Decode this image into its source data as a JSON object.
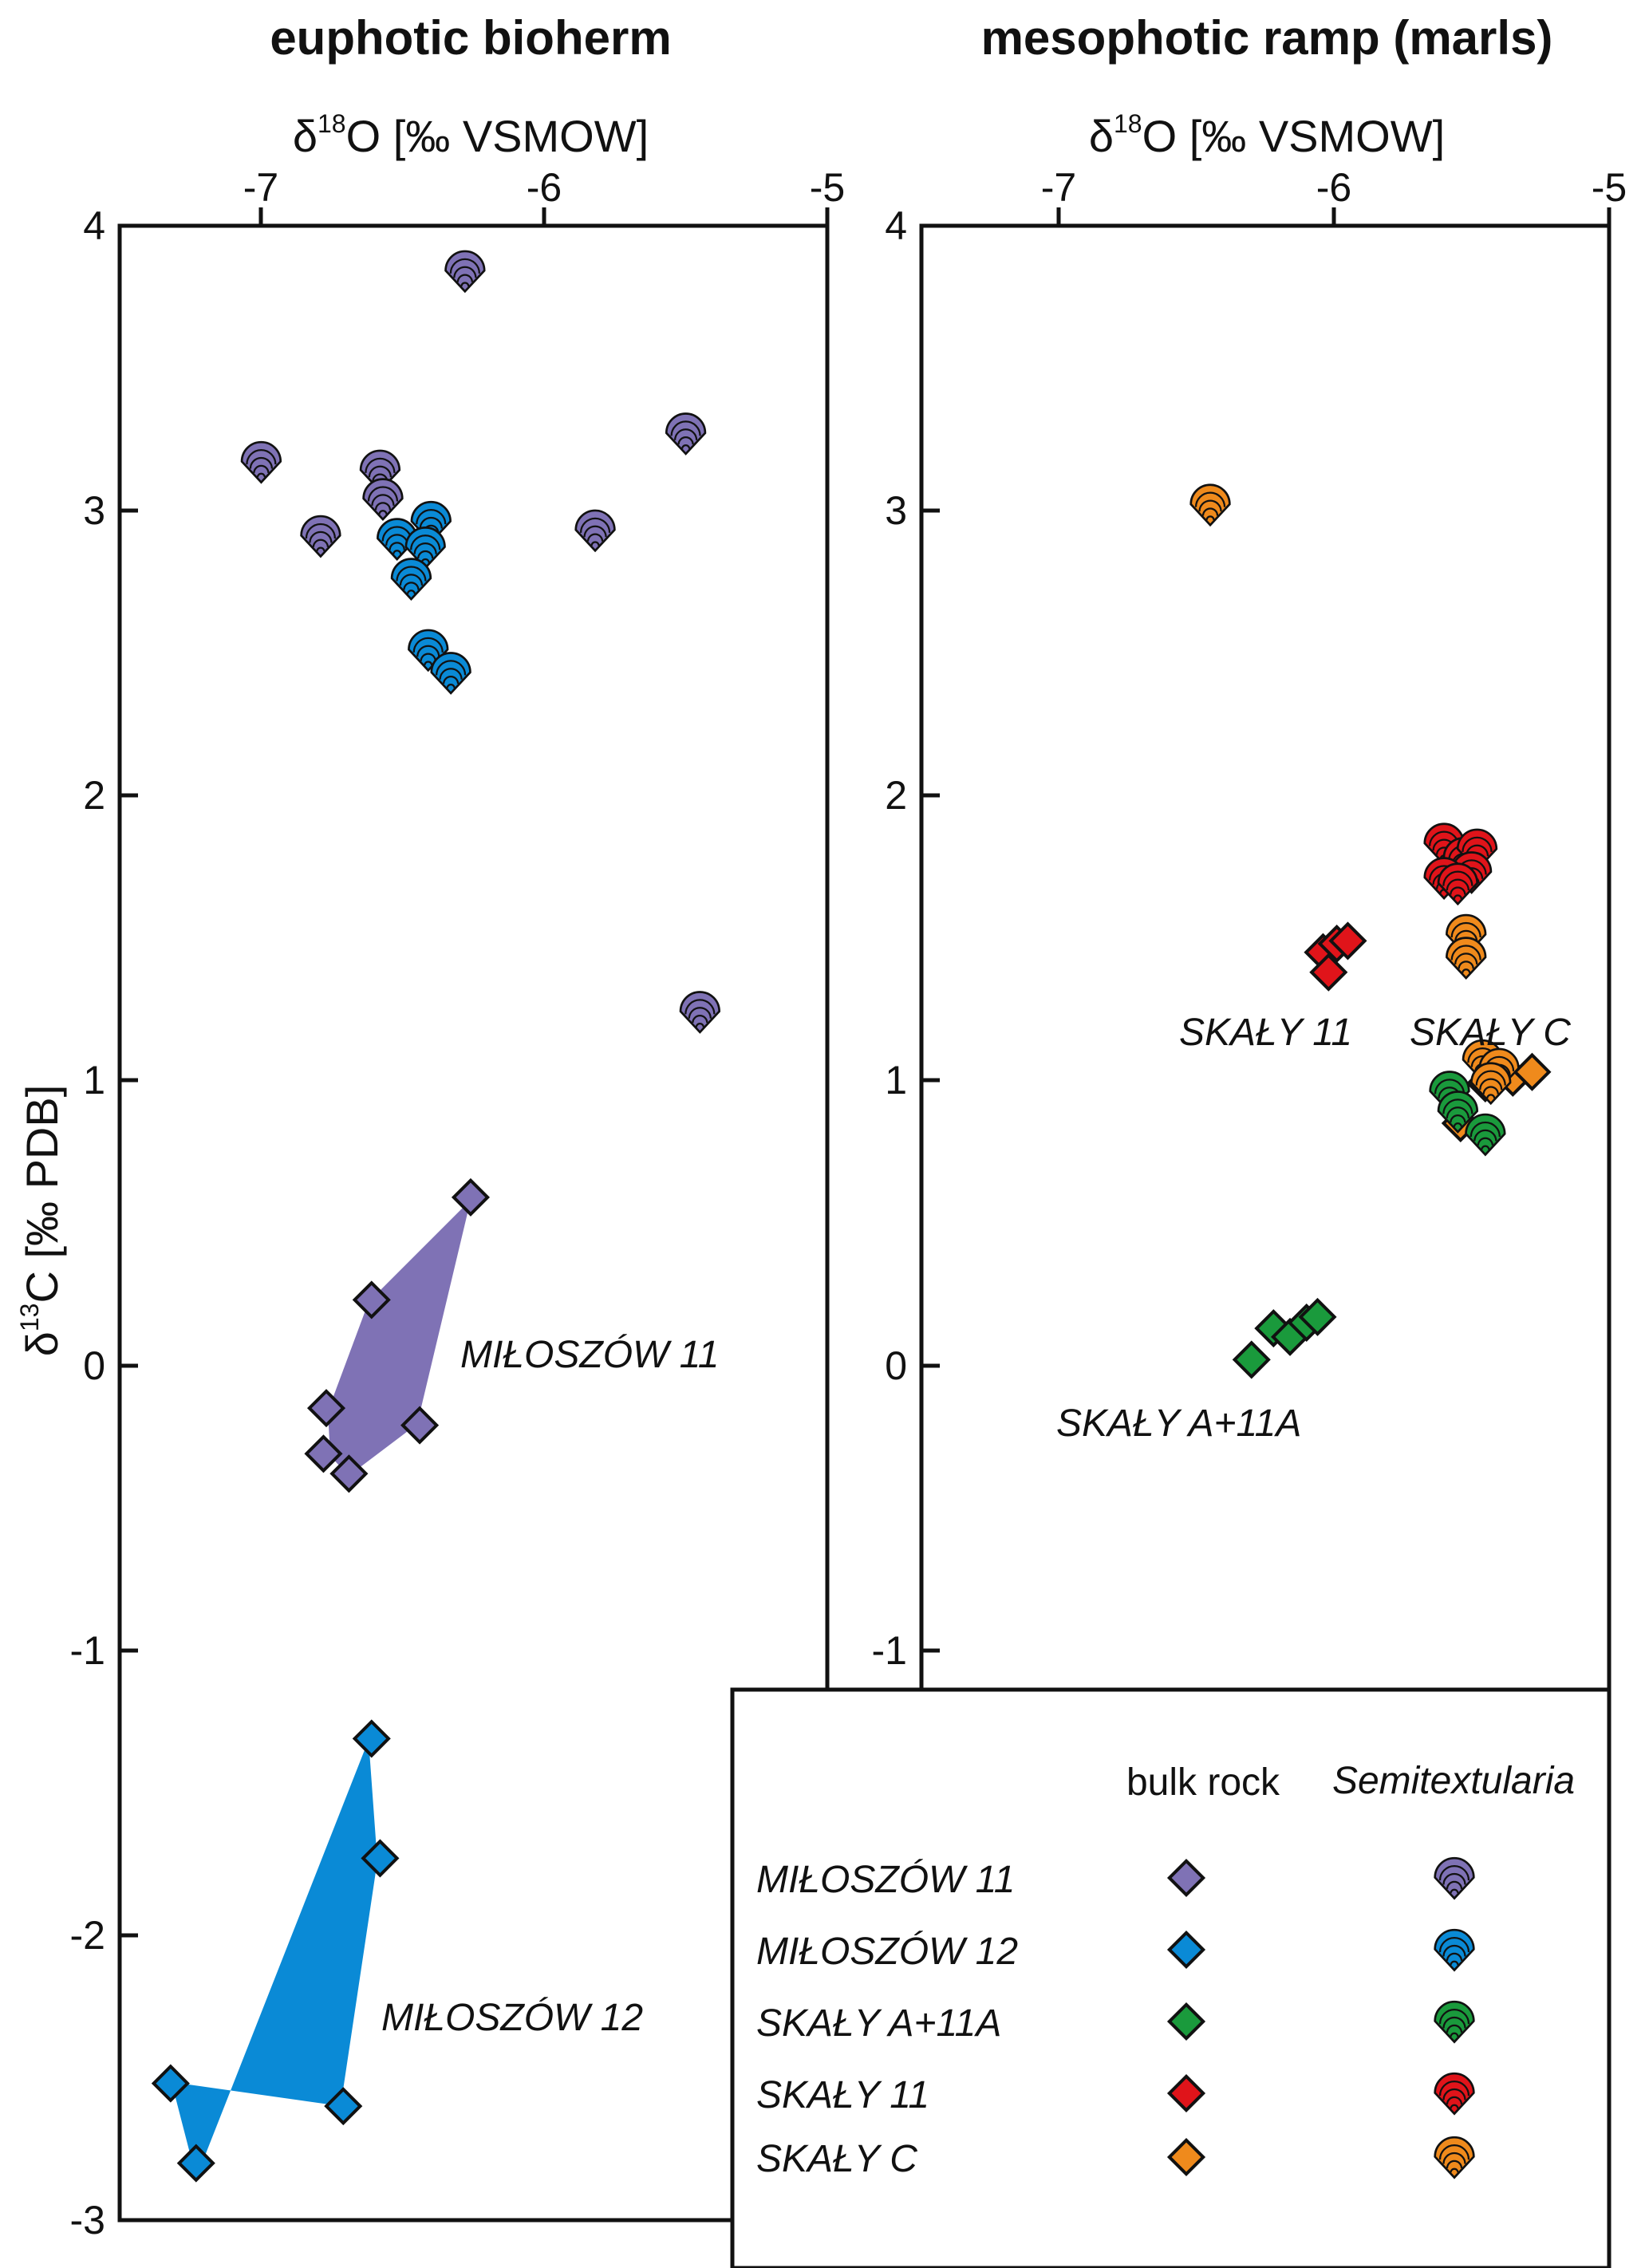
{
  "colors": {
    "MIL11": "#7f72b5",
    "MIL12": "#0a8ad6",
    "SKA_A11A": "#1a9a3c",
    "SKA11": "#e0141a",
    "SKAC": "#ef8a1c"
  },
  "chart_data": [
    {
      "type": "scatter",
      "title": "euphotic bioherm",
      "xlabel": {
        "main": "δ",
        "sup": "18",
        "rest": "O [‰ VSMOW]"
      },
      "ylabel": {
        "main": "δ",
        "sup": "13",
        "rest": "C [‰ PDB]"
      },
      "xlim": [
        -7.5,
        -5
      ],
      "ylim": [
        -3,
        4
      ],
      "xticks": [
        -7,
        -6,
        -5
      ],
      "xtick_labels": [
        "-7",
        "-6",
        "-5"
      ],
      "yticks": [
        4,
        3,
        2,
        1,
        0,
        -1,
        -2,
        -3
      ],
      "ytick_labels": [
        "4",
        "3",
        "2",
        "1",
        "0",
        "-1",
        "-2",
        "-3"
      ],
      "series": [
        {
          "key": "MIL11",
          "marker": "diamond",
          "name": "MIŁOSZÓW 11 bulk rock",
          "points": [
            [
              -6.26,
              0.59
            ],
            [
              -6.61,
              0.23
            ],
            [
              -6.77,
              -0.15
            ],
            [
              -6.78,
              -0.31
            ],
            [
              -6.69,
              -0.38
            ],
            [
              -6.44,
              -0.21
            ]
          ]
        },
        {
          "key": "MIL12",
          "marker": "diamond",
          "name": "MIŁOSZÓW 12 bulk rock",
          "points": [
            [
              -6.61,
              -1.31
            ],
            [
              -6.58,
              -1.73
            ],
            [
              -6.71,
              -2.6
            ],
            [
              -7.32,
              -2.52
            ],
            [
              -7.23,
              -2.8
            ]
          ]
        },
        {
          "key": "MIL11",
          "marker": "shell",
          "name": "MIŁOSZÓW 11 Semitextularia",
          "points": [
            [
              -6.28,
              3.83
            ],
            [
              -7.0,
              3.16
            ],
            [
              -6.58,
              3.13
            ],
            [
              -6.57,
              3.03
            ],
            [
              -6.79,
              2.9
            ],
            [
              -5.82,
              2.92
            ],
            [
              -5.5,
              3.26
            ],
            [
              -5.45,
              1.23
            ]
          ]
        },
        {
          "key": "MIL12",
          "marker": "shell",
          "name": "MIŁOSZÓW 12 Semitextularia",
          "points": [
            [
              -6.52,
              2.89
            ],
            [
              -6.4,
              2.95
            ],
            [
              -6.42,
              2.86
            ],
            [
              -6.47,
              2.75
            ],
            [
              -6.41,
              2.5
            ],
            [
              -6.33,
              2.42
            ]
          ]
        }
      ],
      "annotations": [
        {
          "text": "MIŁOSZÓW 11",
          "x": -6.23,
          "y": 0.02
        },
        {
          "text": "MIŁOSZÓW 12",
          "x": -6.51,
          "y": -2.3
        }
      ]
    },
    {
      "type": "scatter",
      "title": "mesophotic ramp (marls)",
      "xlabel": {
        "main": "δ",
        "sup": "18",
        "rest": "O [‰ VSMOW]"
      },
      "xlim": [
        -7.5,
        -5
      ],
      "ylim": [
        -3,
        4
      ],
      "xticks": [
        -7,
        -6,
        -5
      ],
      "xtick_labels": [
        "-7",
        "-6",
        "-5"
      ],
      "yticks": [
        4,
        3,
        2,
        1,
        0,
        -1
      ],
      "ytick_labels": [
        "4",
        "3",
        "2",
        "1",
        "0",
        "-1"
      ],
      "series": [
        {
          "key": "SKA11",
          "marker": "diamond",
          "name": "SKAŁY 11 bulk rock",
          "points": [
            [
              -6.04,
              1.45
            ],
            [
              -5.99,
              1.48
            ],
            [
              -6.02,
              1.38
            ],
            [
              -5.95,
              1.49
            ]
          ]
        },
        {
          "key": "SKA_A11A",
          "marker": "diamond",
          "name": "SKAŁY A+11A bulk rock",
          "points": [
            [
              -6.3,
              0.02
            ],
            [
              -6.22,
              0.13
            ],
            [
              -6.16,
              0.1
            ],
            [
              -6.1,
              0.15
            ],
            [
              -6.06,
              0.17
            ]
          ]
        },
        {
          "key": "SKAC",
          "marker": "diamond",
          "name": "SKAŁY C bulk rock",
          "points": [
            [
              -5.54,
              0.85
            ],
            [
              -5.45,
              0.99
            ],
            [
              -5.35,
              1.01
            ],
            [
              -5.28,
              1.03
            ]
          ]
        },
        {
          "key": "SKA11",
          "marker": "shell",
          "name": "SKAŁY 11 Semitextularia",
          "points": [
            [
              -5.6,
              1.82
            ],
            [
              -5.53,
              1.77
            ],
            [
              -5.48,
              1.8
            ],
            [
              -5.5,
              1.72
            ],
            [
              -5.6,
              1.7
            ],
            [
              -5.55,
              1.68
            ]
          ]
        },
        {
          "key": "SKA_A11A",
          "marker": "shell",
          "name": "SKAŁY A+11A Semitextularia",
          "points": [
            [
              -5.58,
              0.95
            ],
            [
              -5.55,
              0.88
            ],
            [
              -5.45,
              0.8
            ]
          ]
        },
        {
          "key": "SKAC",
          "marker": "shell",
          "name": "SKAŁY C Semitextularia",
          "points": [
            [
              -6.45,
              3.01
            ],
            [
              -5.52,
              1.5
            ],
            [
              -5.52,
              1.42
            ],
            [
              -5.46,
              1.06
            ],
            [
              -5.4,
              1.03
            ],
            [
              -5.43,
              0.98
            ]
          ]
        }
      ],
      "annotations": [
        {
          "text": "SKAŁY 11",
          "x": -6.01,
          "y": 1.1
        },
        {
          "text": "SKAŁY C",
          "x": -5.32,
          "y": 1.1
        },
        {
          "text": "SKAŁY A+11A",
          "x": -6.05,
          "y": -0.23
        }
      ]
    }
  ],
  "legend": {
    "header_bulk": "bulk rock",
    "header_shell": "Semitextularia",
    "rows": [
      {
        "key": "MIL11",
        "label": "MIŁOSZÓW 11"
      },
      {
        "key": "MIL12",
        "label": "MIŁOSZÓW 12"
      },
      {
        "key": "SKA_A11A",
        "label": "SKAŁY A+11A"
      },
      {
        "key": "SKA11",
        "label": "SKAŁY 11"
      },
      {
        "key": "SKAC",
        "label": "SKAŁY C"
      }
    ]
  }
}
